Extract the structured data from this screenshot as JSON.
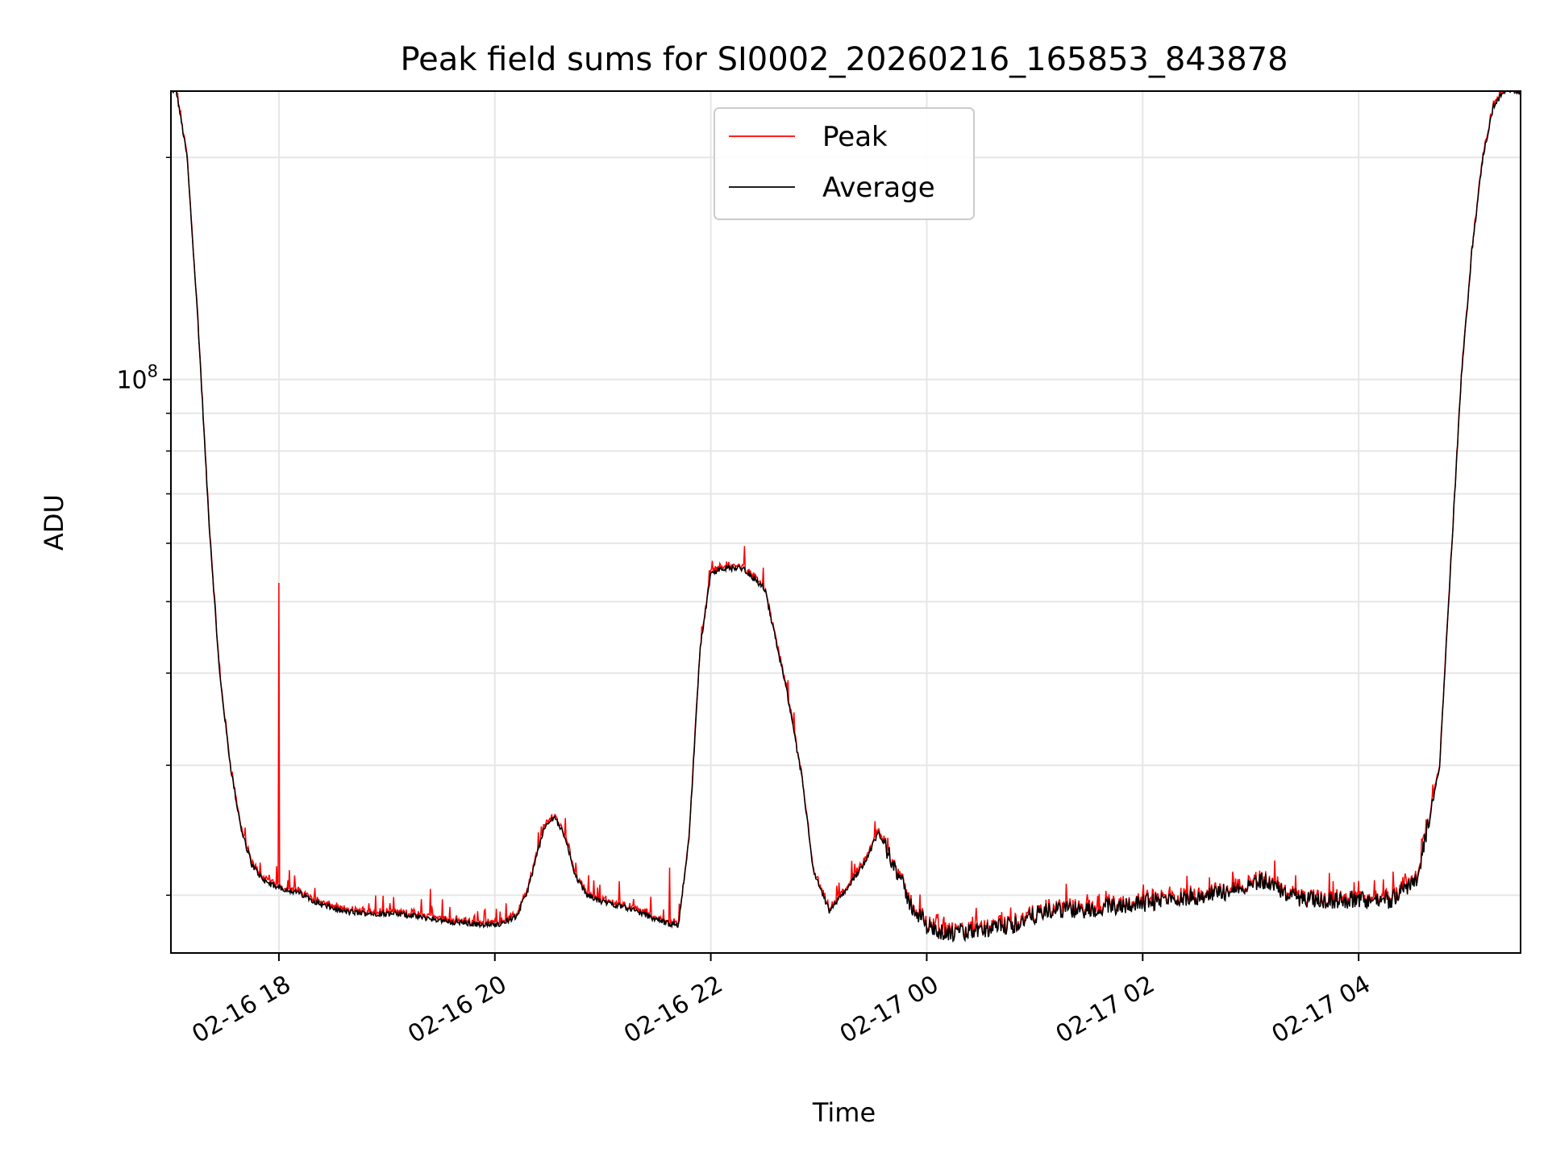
{
  "chart_data": {
    "type": "line",
    "title": "Peak field sums for SI0002_20260216_165853_843878",
    "xlabel": "Time",
    "ylabel": "ADU",
    "yscale": "log",
    "ylim": [
      16700000,
      246000000
    ],
    "xlim": [
      "2026-02-16 17:00",
      "2026-02-17 05:30"
    ],
    "grid": true,
    "legend_position": "upper-center",
    "x_ticks": [
      {
        "t": 18,
        "label": "02-16 18"
      },
      {
        "t": 20,
        "label": "02-16 20"
      },
      {
        "t": 22,
        "label": "02-16 22"
      },
      {
        "t": 24,
        "label": "02-17 00"
      },
      {
        "t": 26,
        "label": "02-17 02"
      },
      {
        "t": 28,
        "label": "02-17 04"
      }
    ],
    "y_major_ticks": [
      {
        "v": 100000000,
        "base": "10",
        "exp": "8"
      }
    ],
    "y_minor_ticks": [
      20000000,
      30000000,
      40000000,
      50000000,
      60000000,
      70000000,
      80000000,
      90000000,
      200000000
    ],
    "series": [
      {
        "name": "Peak",
        "color": "#ff0000"
      },
      {
        "name": "Average",
        "color": "#000000"
      }
    ],
    "hours": [
      17.05,
      17.15,
      17.25,
      17.35,
      17.45,
      17.55,
      17.65,
      17.75,
      17.85,
      17.95,
      18.0,
      18.2,
      18.4,
      18.6,
      18.8,
      19.0,
      19.2,
      19.4,
      19.6,
      19.8,
      20.0,
      20.2,
      20.3,
      20.45,
      20.55,
      20.65,
      20.75,
      20.85,
      21.0,
      21.2,
      21.4,
      21.6,
      21.7,
      21.8,
      21.9,
      22.0,
      22.1,
      22.3,
      22.5,
      22.7,
      22.85,
      22.95,
      23.1,
      23.3,
      23.45,
      23.55,
      23.7,
      23.85,
      24.0,
      24.2,
      24.5,
      24.8,
      25.0,
      25.2,
      25.5,
      25.8,
      26.0,
      26.3,
      26.6,
      26.9,
      27.1,
      27.3,
      27.5,
      27.7,
      28.0,
      28.3,
      28.55,
      28.75,
      28.85,
      28.95,
      29.05,
      29.15,
      29.25,
      29.35,
      29.5
    ],
    "average_values": [
      246000000,
      200000000,
      120000000,
      65000000,
      40000000,
      30000000,
      24500000,
      22000000,
      21000000,
      20600000,
      20500000,
      20100000,
      19400000,
      19000000,
      18900000,
      18900000,
      18800000,
      18600000,
      18400000,
      18300000,
      18200000,
      18700000,
      20200000,
      24500000,
      25600000,
      24000000,
      21200000,
      20000000,
      19600000,
      19300000,
      18800000,
      18300000,
      18200000,
      24000000,
      43000000,
      54500000,
      55500000,
      55500000,
      52000000,
      38000000,
      28500000,
      21500000,
      19000000,
      20800000,
      22500000,
      24300000,
      22000000,
      19400000,
      18200000,
      17700000,
      17900000,
      18200000,
      18800000,
      19100000,
      19100000,
      19400000,
      19500000,
      19800000,
      20000000,
      20400000,
      21000000,
      20200000,
      19700000,
      19700000,
      19700000,
      19700000,
      21200000,
      30000000,
      55000000,
      100000000,
      150000000,
      200000000,
      235000000,
      246000000,
      246000000
    ],
    "peak_spikes": [
      {
        "t": 18.0,
        "v": 53000000
      },
      {
        "t": 21.62,
        "v": 21800000
      },
      {
        "t": 19.4,
        "v": 20400000
      },
      {
        "t": 17.45,
        "v": 41000000
      },
      {
        "t": 17.65,
        "v": 24800000
      }
    ]
  },
  "legend": {
    "peak": "Peak",
    "average": "Average"
  }
}
